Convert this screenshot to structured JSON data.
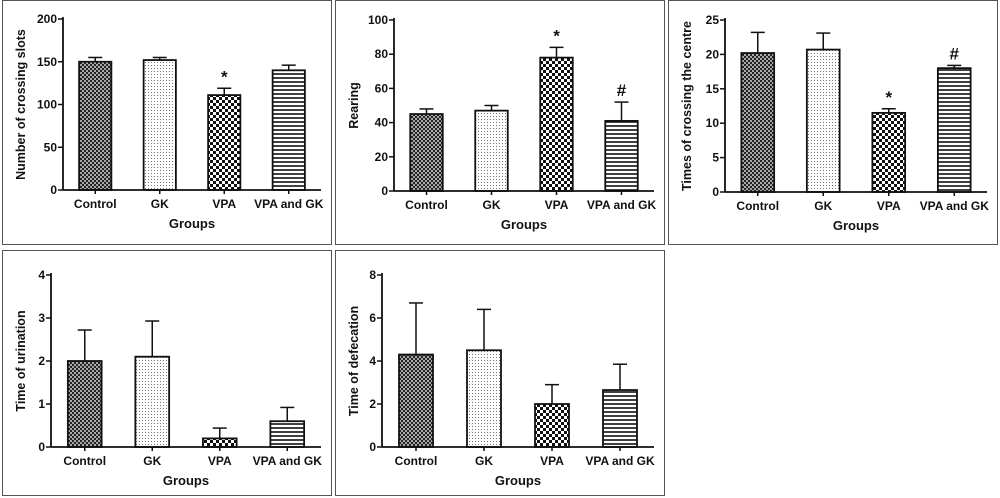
{
  "colors": {
    "axis": "#111111",
    "bar_edge": "#111111",
    "panel_border": "#555555",
    "background": "#ffffff"
  },
  "chart_data": [
    {
      "type": "bar",
      "categories": [
        "Control",
        "GK",
        "VPA",
        "VPA and GK"
      ],
      "values": [
        150,
        152,
        111,
        140
      ],
      "errors": [
        5,
        3,
        8,
        6
      ],
      "annotations": [
        "",
        "",
        "*",
        ""
      ],
      "patterns": [
        "crosshatch",
        "dots",
        "checker",
        "hlines"
      ],
      "xlabel": "Groups",
      "ylabel": "Number of crossing slots",
      "ylim": [
        0,
        200
      ],
      "yticks": [
        0,
        50,
        100,
        150,
        200
      ]
    },
    {
      "type": "bar",
      "categories": [
        "Control",
        "GK",
        "VPA",
        "VPA and GK"
      ],
      "values": [
        45,
        47,
        78,
        41
      ],
      "errors": [
        3,
        3,
        6,
        11
      ],
      "annotations": [
        "",
        "",
        "*",
        "#"
      ],
      "patterns": [
        "crosshatch",
        "dots",
        "checker",
        "hlines"
      ],
      "xlabel": "Groups",
      "ylabel": "Rearing",
      "ylim": [
        0,
        100
      ],
      "yticks": [
        0,
        20,
        40,
        60,
        80,
        100
      ]
    },
    {
      "type": "bar",
      "categories": [
        "Control",
        "GK",
        "VPA",
        "VPA and GK"
      ],
      "values": [
        20.2,
        20.7,
        11.5,
        18
      ],
      "errors": [
        3,
        2.4,
        0.6,
        0.4
      ],
      "annotations": [
        "",
        "",
        "*",
        "#"
      ],
      "patterns": [
        "crosshatch",
        "dots",
        "checker",
        "hlines"
      ],
      "xlabel": "Groups",
      "ylabel": "Times of crossing the centre",
      "ylim": [
        0,
        25
      ],
      "yticks": [
        0,
        5,
        10,
        15,
        20,
        25
      ]
    },
    {
      "type": "bar",
      "categories": [
        "Control",
        "GK",
        "VPA",
        "VPA and GK"
      ],
      "values": [
        2,
        2.1,
        0.2,
        0.6
      ],
      "errors": [
        0.72,
        0.83,
        0.24,
        0.32
      ],
      "annotations": [
        "",
        "",
        "",
        ""
      ],
      "patterns": [
        "crosshatch",
        "dots",
        "checker",
        "hlines"
      ],
      "xlabel": "Groups",
      "ylabel": "Time of urination",
      "ylim": [
        0,
        4
      ],
      "yticks": [
        0,
        1,
        2,
        3,
        4
      ]
    },
    {
      "type": "bar",
      "categories": [
        "Control",
        "GK",
        "VPA",
        "VPA and GK"
      ],
      "values": [
        4.3,
        4.5,
        2,
        2.65
      ],
      "errors": [
        2.4,
        1.9,
        0.9,
        1.2
      ],
      "annotations": [
        "",
        "",
        "",
        ""
      ],
      "patterns": [
        "crosshatch",
        "dots",
        "checker",
        "hlines"
      ],
      "xlabel": "Groups",
      "ylabel": "Time of defecation",
      "ylim": [
        0,
        8
      ],
      "yticks": [
        0,
        2,
        4,
        6,
        8
      ]
    }
  ]
}
